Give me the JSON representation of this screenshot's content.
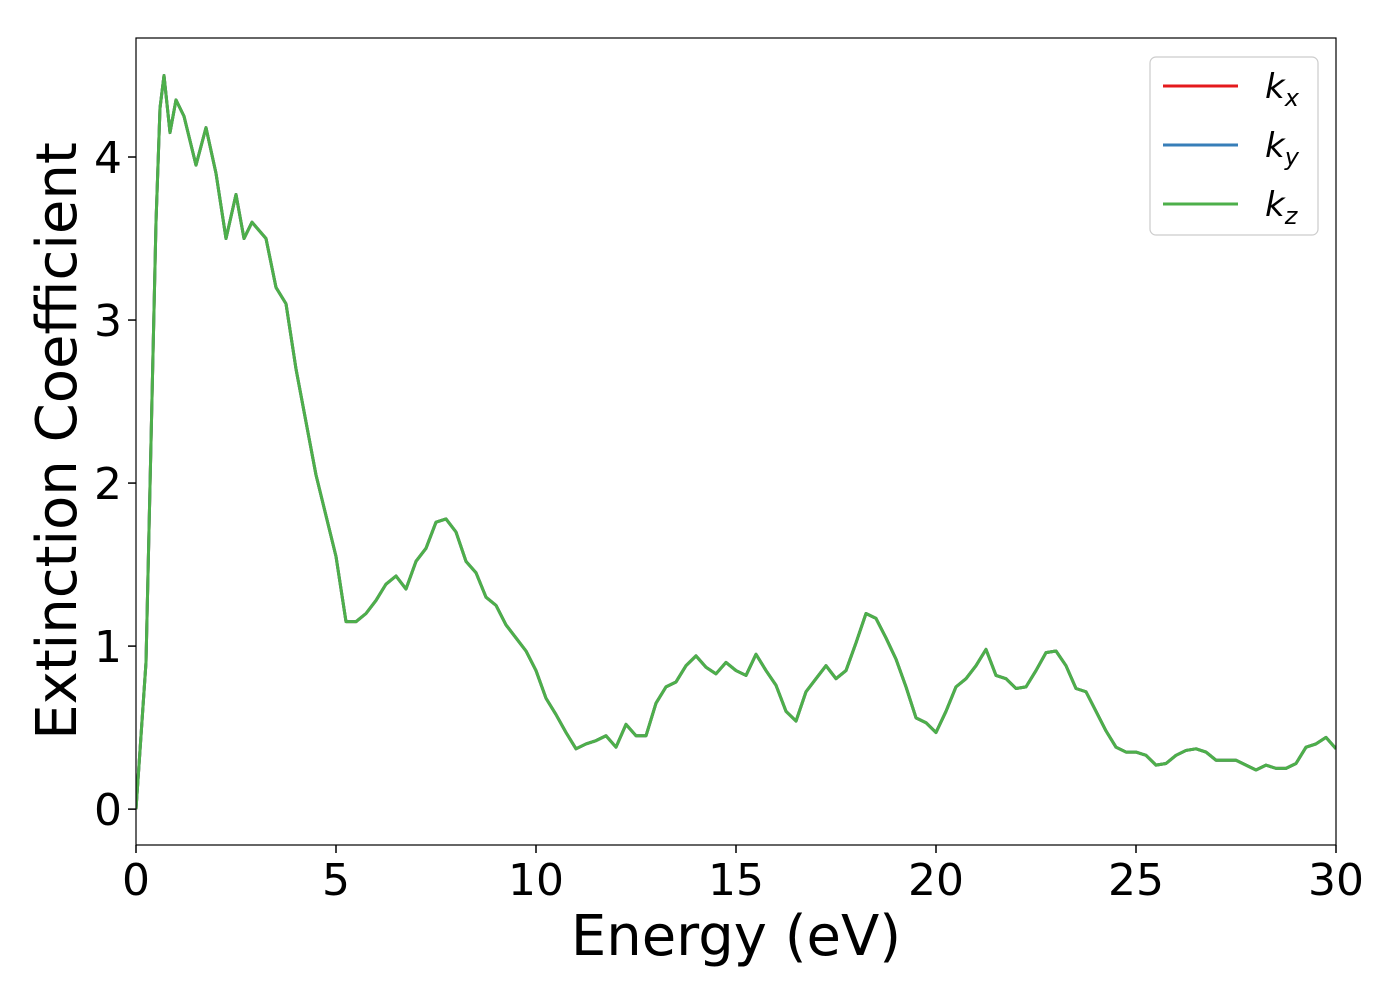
{
  "chart_data": {
    "type": "line",
    "xlabel": "Energy (eV)",
    "ylabel": "Extinction Coefficient",
    "x": [
      0,
      0.25,
      0.5,
      0.6,
      0.7,
      0.85,
      1.0,
      1.2,
      1.5,
      1.75,
      2.0,
      2.25,
      2.5,
      2.7,
      2.9,
      3.25,
      3.5,
      3.75,
      4.0,
      4.5,
      5.0,
      5.25,
      5.5,
      5.75,
      6.0,
      6.25,
      6.5,
      6.75,
      7.0,
      7.25,
      7.5,
      7.75,
      8.0,
      8.25,
      8.5,
      8.75,
      9.0,
      9.25,
      9.5,
      9.75,
      10.0,
      10.25,
      10.5,
      10.75,
      11.0,
      11.25,
      11.5,
      11.75,
      12.0,
      12.25,
      12.5,
      12.75,
      13.0,
      13.25,
      13.5,
      13.75,
      14.0,
      14.25,
      14.5,
      14.75,
      15.0,
      15.25,
      15.5,
      15.75,
      16.0,
      16.25,
      16.5,
      16.75,
      17.0,
      17.25,
      17.5,
      17.75,
      18.0,
      18.25,
      18.5,
      18.75,
      19.0,
      19.25,
      19.5,
      19.75,
      20.0,
      20.25,
      20.5,
      20.75,
      21.0,
      21.25,
      21.5,
      21.75,
      22.0,
      22.25,
      22.5,
      22.75,
      23.0,
      23.25,
      23.5,
      23.75,
      24.0,
      24.25,
      24.5,
      24.75,
      25.0,
      25.25,
      25.5,
      25.75,
      26.0,
      26.25,
      26.5,
      26.75,
      27.0,
      27.25,
      27.5,
      27.75,
      28.0,
      28.25,
      28.5,
      28.75,
      29.0,
      29.25,
      29.5,
      29.75,
      30
    ],
    "series": [
      {
        "name": "kx",
        "color": "#e41a1c",
        "values": [
          0,
          0.9,
          3.6,
          4.3,
          4.5,
          4.15,
          4.35,
          4.25,
          3.95,
          4.18,
          3.9,
          3.5,
          3.77,
          3.5,
          3.6,
          3.5,
          3.2,
          3.1,
          2.7,
          2.05,
          1.55,
          1.15,
          1.15,
          1.2,
          1.28,
          1.38,
          1.43,
          1.35,
          1.52,
          1.6,
          1.76,
          1.78,
          1.7,
          1.52,
          1.45,
          1.3,
          1.25,
          1.13,
          1.05,
          0.97,
          0.85,
          0.68,
          0.58,
          0.47,
          0.37,
          0.4,
          0.42,
          0.45,
          0.38,
          0.52,
          0.45,
          0.45,
          0.65,
          0.75,
          0.78,
          0.88,
          0.94,
          0.87,
          0.83,
          0.9,
          0.85,
          0.82,
          0.95,
          0.85,
          0.76,
          0.6,
          0.54,
          0.72,
          0.8,
          0.88,
          0.8,
          0.85,
          1.02,
          1.2,
          1.17,
          1.05,
          0.92,
          0.75,
          0.56,
          0.53,
          0.47,
          0.6,
          0.75,
          0.8,
          0.88,
          0.98,
          0.82,
          0.8,
          0.74,
          0.75,
          0.85,
          0.96,
          0.97,
          0.88,
          0.74,
          0.72,
          0.6,
          0.48,
          0.38,
          0.35,
          0.35,
          0.33,
          0.27,
          0.28,
          0.33,
          0.36,
          0.37,
          0.35,
          0.3,
          0.3,
          0.3,
          0.27,
          0.24,
          0.27,
          0.25,
          0.25,
          0.28,
          0.38,
          0.4,
          0.44,
          0.37
        ]
      },
      {
        "name": "ky",
        "color": "#377eb8",
        "values": [
          0,
          0.9,
          3.6,
          4.3,
          4.5,
          4.15,
          4.35,
          4.25,
          3.95,
          4.18,
          3.9,
          3.5,
          3.77,
          3.5,
          3.6,
          3.5,
          3.2,
          3.1,
          2.7,
          2.05,
          1.55,
          1.15,
          1.15,
          1.2,
          1.28,
          1.38,
          1.43,
          1.35,
          1.52,
          1.6,
          1.76,
          1.78,
          1.7,
          1.52,
          1.45,
          1.3,
          1.25,
          1.13,
          1.05,
          0.97,
          0.85,
          0.68,
          0.58,
          0.47,
          0.37,
          0.4,
          0.42,
          0.45,
          0.38,
          0.52,
          0.45,
          0.45,
          0.65,
          0.75,
          0.78,
          0.88,
          0.94,
          0.87,
          0.83,
          0.9,
          0.85,
          0.82,
          0.95,
          0.85,
          0.76,
          0.6,
          0.54,
          0.72,
          0.8,
          0.88,
          0.8,
          0.85,
          1.02,
          1.2,
          1.17,
          1.05,
          0.92,
          0.75,
          0.56,
          0.53,
          0.47,
          0.6,
          0.75,
          0.8,
          0.88,
          0.98,
          0.82,
          0.8,
          0.74,
          0.75,
          0.85,
          0.96,
          0.97,
          0.88,
          0.74,
          0.72,
          0.6,
          0.48,
          0.38,
          0.35,
          0.35,
          0.33,
          0.27,
          0.28,
          0.33,
          0.36,
          0.37,
          0.35,
          0.3,
          0.3,
          0.3,
          0.27,
          0.24,
          0.27,
          0.25,
          0.25,
          0.28,
          0.38,
          0.4,
          0.44,
          0.37
        ]
      },
      {
        "name": "kz",
        "color": "#4daf4a",
        "values": [
          0,
          0.9,
          3.6,
          4.3,
          4.5,
          4.15,
          4.35,
          4.25,
          3.95,
          4.18,
          3.9,
          3.5,
          3.77,
          3.5,
          3.6,
          3.5,
          3.2,
          3.1,
          2.7,
          2.05,
          1.55,
          1.15,
          1.15,
          1.2,
          1.28,
          1.38,
          1.43,
          1.35,
          1.52,
          1.6,
          1.76,
          1.78,
          1.7,
          1.52,
          1.45,
          1.3,
          1.25,
          1.13,
          1.05,
          0.97,
          0.85,
          0.68,
          0.58,
          0.47,
          0.37,
          0.4,
          0.42,
          0.45,
          0.38,
          0.52,
          0.45,
          0.45,
          0.65,
          0.75,
          0.78,
          0.88,
          0.94,
          0.87,
          0.83,
          0.9,
          0.85,
          0.82,
          0.95,
          0.85,
          0.76,
          0.6,
          0.54,
          0.72,
          0.8,
          0.88,
          0.8,
          0.85,
          1.02,
          1.2,
          1.17,
          1.05,
          0.92,
          0.75,
          0.56,
          0.53,
          0.47,
          0.6,
          0.75,
          0.8,
          0.88,
          0.98,
          0.82,
          0.8,
          0.74,
          0.75,
          0.85,
          0.96,
          0.97,
          0.88,
          0.74,
          0.72,
          0.6,
          0.48,
          0.38,
          0.35,
          0.35,
          0.33,
          0.27,
          0.28,
          0.33,
          0.36,
          0.37,
          0.35,
          0.3,
          0.3,
          0.3,
          0.27,
          0.24,
          0.27,
          0.25,
          0.25,
          0.28,
          0.38,
          0.4,
          0.44,
          0.37
        ]
      }
    ],
    "xlim": [
      0,
      30
    ],
    "xticks": [
      0,
      5,
      10,
      15,
      20,
      25,
      30
    ],
    "ylim": [
      -0.22,
      4.73
    ],
    "yticks": [
      0,
      1,
      2,
      3,
      4
    ],
    "legend": "upper right"
  }
}
